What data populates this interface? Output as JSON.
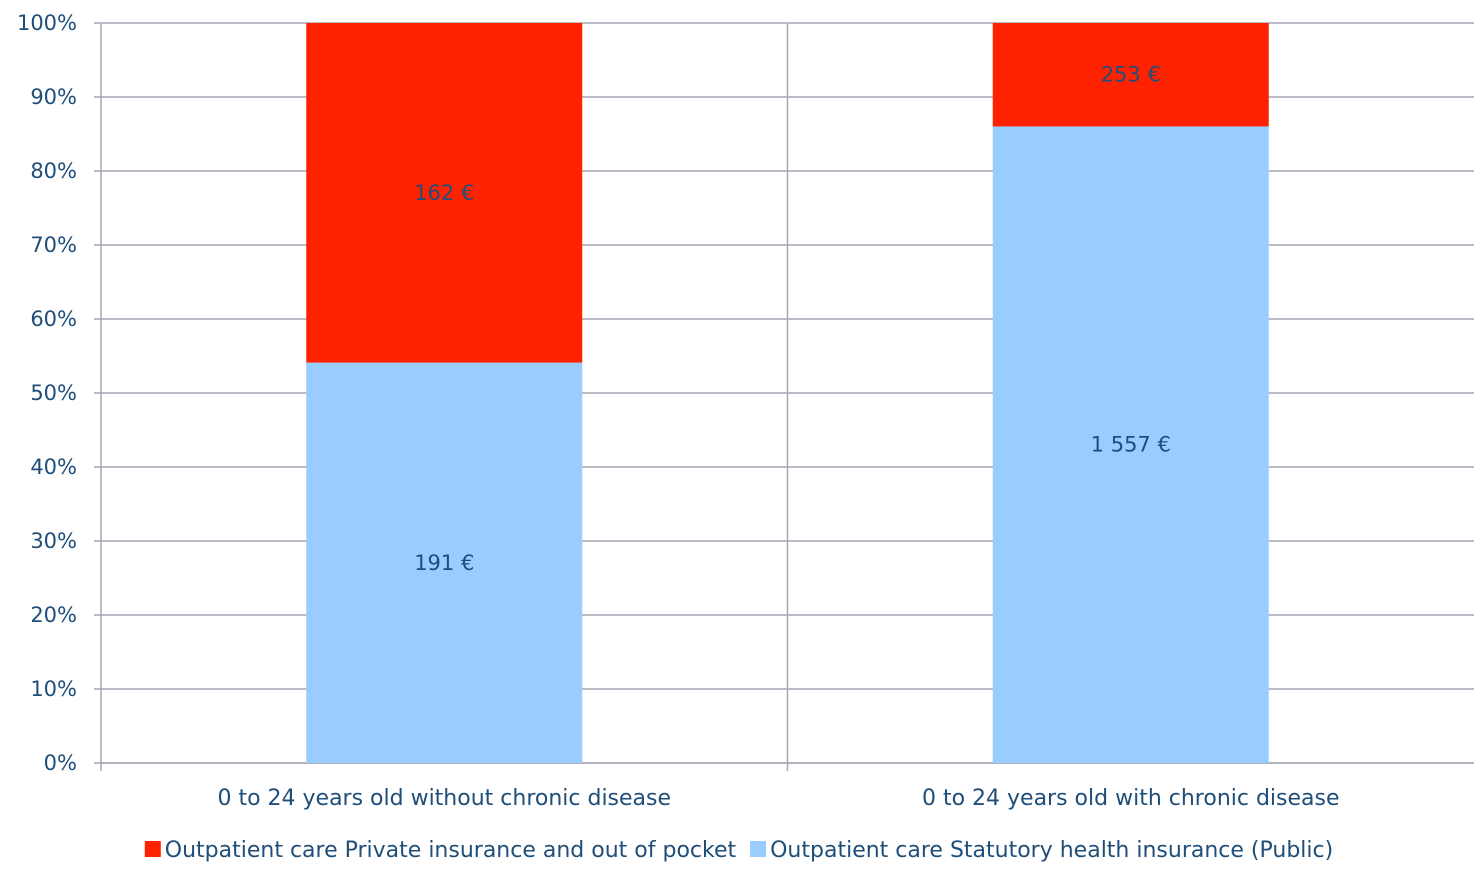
{
  "chart_data": {
    "type": "bar",
    "stacked": "percent",
    "categories": [
      "0 to 24 years old without chronic disease",
      "0 to 24 years old with chronic disease"
    ],
    "series": [
      {
        "name": "Outpatient care  Statutory health insurance (Public)",
        "values": [
          191,
          1557
        ],
        "labels": [
          "191 €",
          "1 557 €"
        ],
        "color": "#99ccff"
      },
      {
        "name": "Outpatient care Private insurance and out of pocket",
        "values": [
          162,
          253
        ],
        "labels": [
          "162 €",
          "253 €"
        ],
        "color": "#ff2200"
      }
    ],
    "legend_order": [
      1,
      0
    ],
    "ylim": [
      0,
      100
    ],
    "yticks": [
      "0%",
      "10%",
      "20%",
      "30%",
      "40%",
      "50%",
      "60%",
      "70%",
      "80%",
      "90%",
      "100%"
    ],
    "grid": true,
    "legend_position": "bottom",
    "title": "",
    "xlabel": "",
    "ylabel": ""
  }
}
